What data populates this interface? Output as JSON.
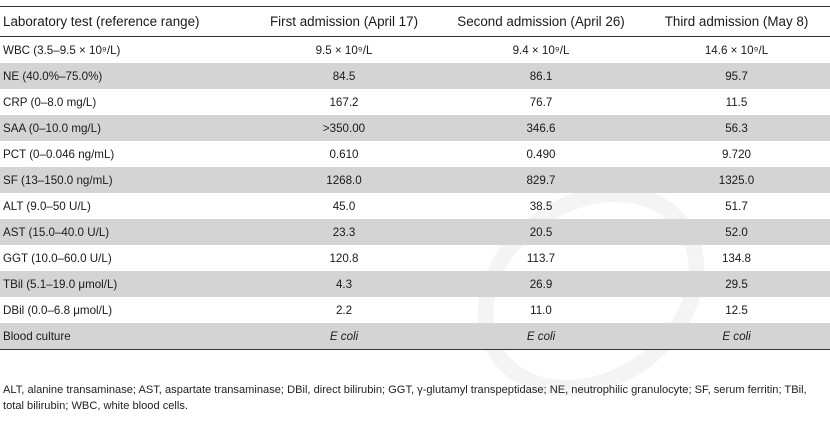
{
  "table": {
    "columns": [
      "Laboratory test (reference range)",
      "First admission (April 17)",
      "Second admission (April 26)",
      "Third admission (May 8)"
    ],
    "rows": [
      {
        "label": "WBC (3.5–9.5 × 10⁹/L)",
        "v1": "9.5 × 10⁹/L",
        "v2": "9.4 × 10⁹/L",
        "v3": "14.6 × 10⁹/L"
      },
      {
        "label": "NE (40.0%–75.0%)",
        "v1": "84.5",
        "v2": "86.1",
        "v3": "95.7"
      },
      {
        "label": "CRP (0–8.0 mg/L)",
        "v1": "167.2",
        "v2": "76.7",
        "v3": "11.5"
      },
      {
        "label": "SAA (0–10.0 mg/L)",
        "v1": ">350.00",
        "v2": "346.6",
        "v3": "56.3"
      },
      {
        "label": "PCT (0–0.046 ng/mL)",
        "v1": "0.610",
        "v2": "0.490",
        "v3": "9.720"
      },
      {
        "label": "SF (13–150.0 ng/mL)",
        "v1": "1268.0",
        "v2": "829.7",
        "v3": "1325.0"
      },
      {
        "label": "ALT (9.0–50 U/L)",
        "v1": "45.0",
        "v2": "38.5",
        "v3": "51.7"
      },
      {
        "label": "AST (15.0–40.0 U/L)",
        "v1": "23.3",
        "v2": "20.5",
        "v3": "52.0"
      },
      {
        "label": "GGT (10.0–60.0 U/L)",
        "v1": "120.8",
        "v2": "113.7",
        "v3": "134.8"
      },
      {
        "label": "TBil (5.1–19.0 μmol/L)",
        "v1": "4.3",
        "v2": "26.9",
        "v3": "29.5"
      },
      {
        "label": "DBil (0.0–6.8 μmol/L)",
        "v1": "2.2",
        "v2": "11.0",
        "v3": "12.5"
      },
      {
        "label": "Blood culture",
        "v1": "E coli",
        "v2": "E coli",
        "v3": "E coli"
      }
    ]
  },
  "footnote": "ALT, alanine transaminase; AST, aspartate transaminase; DBil, direct bilirubin; GGT, γ-glutamyl transpeptidase; NE, neutrophilic granulocyte; SF, serum ferritin; TBil, total bilirubin; WBC, white blood cells."
}
